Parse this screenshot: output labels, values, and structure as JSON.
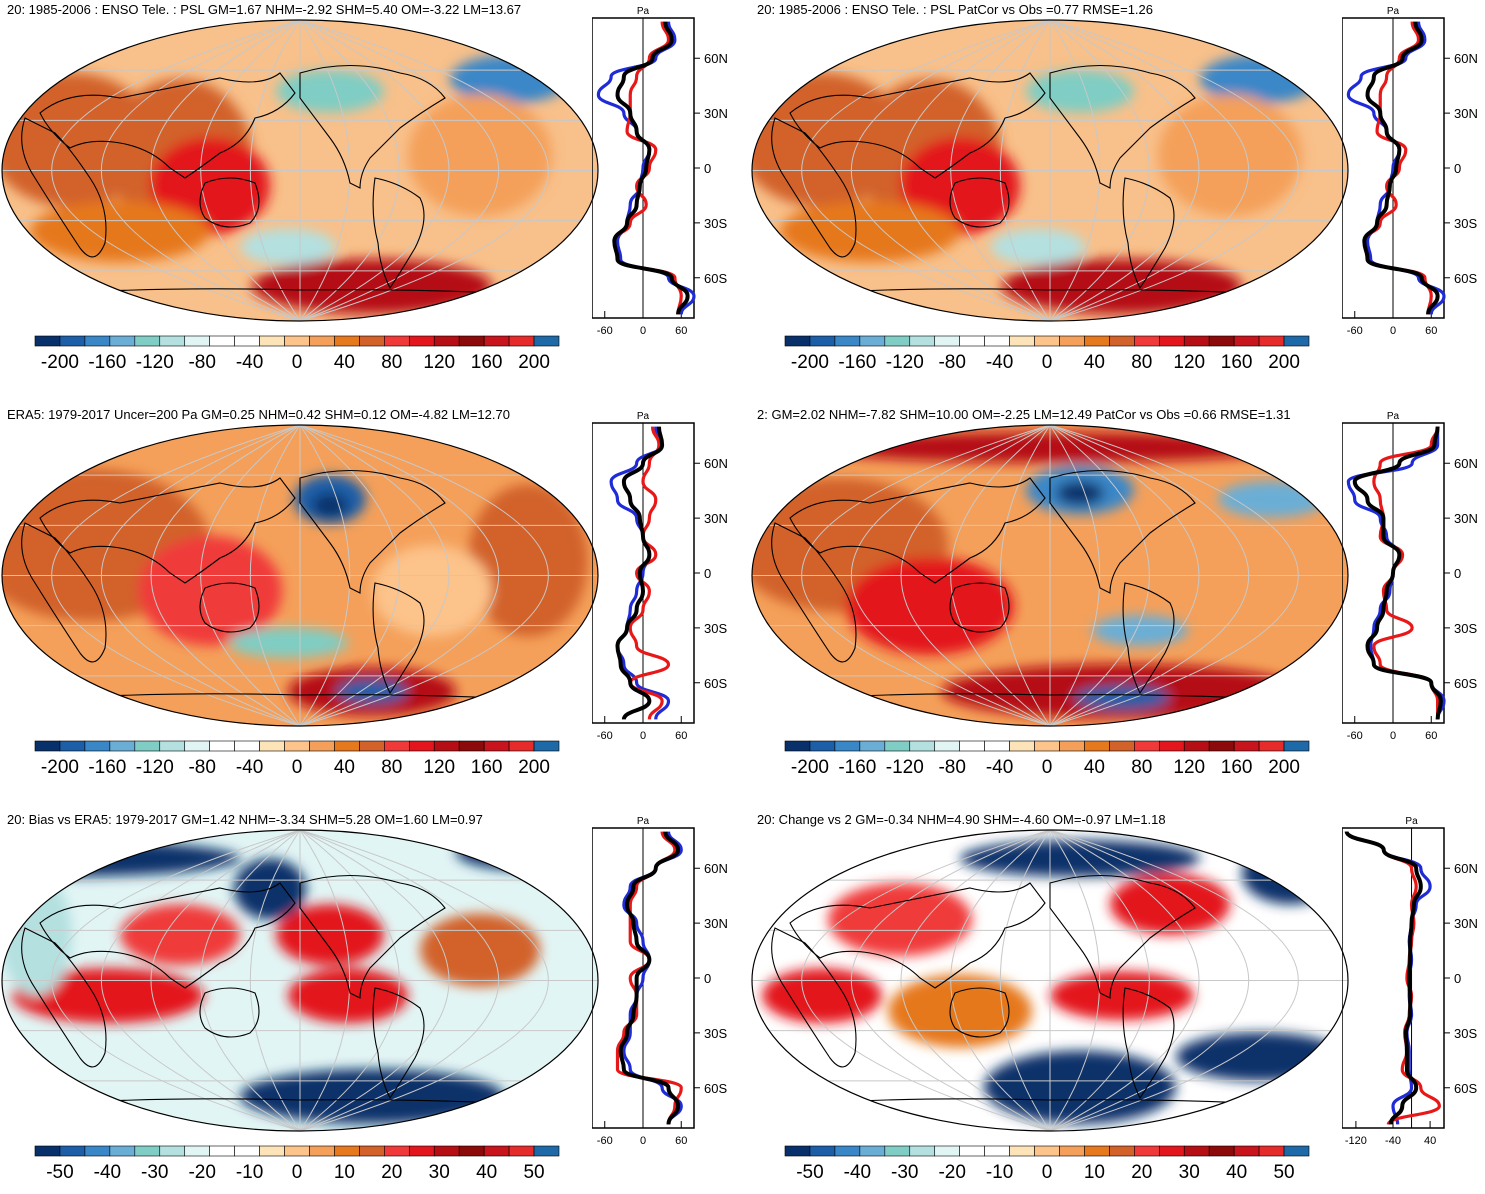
{
  "palette_diverging": [
    "#08306b",
    "#1c5ea8",
    "#3a87c8",
    "#6aaed6",
    "#7fcdc4",
    "#b4e0e0",
    "#e2f5f5",
    "#ffffff",
    "#ffffff",
    "#fde3b8",
    "#fcc38a",
    "#f4a05a",
    "#e6781e",
    "#d2622a",
    "#f03a3a",
    "#e3161d",
    "#b50e14",
    "#8c0a0a",
    "#c8141c",
    "#e62b2b",
    "#1e6aa8"
  ],
  "colors": {
    "blue_line": "#1f2bd6",
    "red_line": "#e81818",
    "black_line": "#000000",
    "land_outline": "#000000",
    "grid": "#c8c8c8"
  },
  "chart_data": [
    {
      "type": "heatmap",
      "title": "20: 1985-2006 : ENSO Tele. : PSL GM=1.67 NHM=-2.92 SHM=5.40 OM=-3.22 LM=13.67",
      "colorbar_ticks": [
        "-200",
        "-160",
        "-120",
        "-80",
        "-40",
        "0",
        "40",
        "80",
        "120",
        "160",
        "200"
      ],
      "zonal_profile": {
        "ylabel": "Pa",
        "lat_ticks": [
          "60N",
          "30N",
          "0",
          "30S",
          "60S"
        ],
        "x_ticks": [
          "-60",
          "0",
          "60"
        ],
        "xlim": [
          -80,
          80
        ],
        "series": [
          {
            "name": "blue",
            "lat": [
              80,
              70,
              60,
              50,
              40,
              30,
              20,
              10,
              0,
              -10,
              -20,
              -30,
              -40,
              -50,
              -60,
              -70,
              -80
            ],
            "values": [
              40,
              50,
              20,
              -50,
              -70,
              -30,
              -10,
              10,
              0,
              -5,
              -20,
              -25,
              -40,
              -35,
              40,
              80,
              60
            ]
          },
          {
            "name": "red",
            "lat": [
              80,
              70,
              60,
              50,
              40,
              30,
              20,
              10,
              0,
              -10,
              -20,
              -30,
              -40,
              -50,
              -60,
              -70,
              -80
            ],
            "values": [
              30,
              40,
              10,
              -10,
              -20,
              -20,
              -25,
              20,
              10,
              -10,
              5,
              -20,
              -45,
              -40,
              50,
              60,
              55
            ]
          },
          {
            "name": "black",
            "lat": [
              80,
              70,
              60,
              50,
              40,
              30,
              20,
              10,
              0,
              -10,
              -20,
              -30,
              -40,
              -50,
              -60,
              -70,
              -80
            ],
            "values": [
              35,
              45,
              15,
              -30,
              -40,
              -20,
              -10,
              10,
              5,
              -5,
              -10,
              -25,
              -45,
              -40,
              45,
              70,
              55
            ]
          }
        ]
      }
    },
    {
      "type": "heatmap",
      "title": "20: 1985-2006 : ENSO Tele. : PSL PatCor vs Obs =0.77 RMSE=1.26",
      "colorbar_ticks": [
        "-200",
        "-160",
        "-120",
        "-80",
        "-40",
        "0",
        "40",
        "80",
        "120",
        "160",
        "200"
      ],
      "zonal_profile": {
        "ylabel": "Pa",
        "lat_ticks": [
          "60N",
          "30N",
          "0",
          "30S",
          "60S"
        ],
        "x_ticks": [
          "-60",
          "0",
          "60"
        ],
        "xlim": [
          -80,
          80
        ],
        "series": [
          {
            "name": "blue",
            "lat": [
              80,
              70,
              60,
              50,
              40,
              30,
              20,
              10,
              0,
              -10,
              -20,
              -30,
              -40,
              -50,
              -60,
              -70,
              -80
            ],
            "values": [
              40,
              50,
              20,
              -50,
              -70,
              -30,
              -10,
              10,
              0,
              -5,
              -20,
              -25,
              -40,
              -35,
              40,
              80,
              60
            ]
          },
          {
            "name": "red",
            "lat": [
              80,
              70,
              60,
              50,
              40,
              30,
              20,
              10,
              0,
              -10,
              -20,
              -30,
              -40,
              -50,
              -60,
              -70,
              -80
            ],
            "values": [
              30,
              40,
              10,
              -10,
              -20,
              -20,
              -25,
              20,
              10,
              -10,
              5,
              -20,
              -45,
              -40,
              50,
              60,
              55
            ]
          },
          {
            "name": "black",
            "lat": [
              80,
              70,
              60,
              50,
              40,
              30,
              20,
              10,
              0,
              -10,
              -20,
              -30,
              -40,
              -50,
              -60,
              -70,
              -80
            ],
            "values": [
              35,
              45,
              15,
              -30,
              -40,
              -20,
              -10,
              10,
              5,
              -5,
              -10,
              -25,
              -45,
              -40,
              45,
              70,
              55
            ]
          }
        ]
      }
    },
    {
      "type": "heatmap",
      "title": "ERA5: 1979-2017 Uncer=200 Pa GM=0.25 NHM=0.42 SHM=0.12 OM=-4.82 LM=12.70",
      "colorbar_ticks": [
        "-200",
        "-160",
        "-120",
        "-80",
        "-40",
        "0",
        "40",
        "80",
        "120",
        "160",
        "200"
      ],
      "zonal_profile": {
        "ylabel": "Pa",
        "lat_ticks": [
          "60N",
          "30N",
          "0",
          "30S",
          "60S"
        ],
        "x_ticks": [
          "-60",
          "0",
          "60"
        ],
        "xlim": [
          -80,
          80
        ],
        "series": [
          {
            "name": "blue",
            "lat": [
              80,
              70,
              60,
              50,
              40,
              30,
              20,
              10,
              0,
              -10,
              -20,
              -30,
              -40,
              -50,
              -60,
              -70,
              -80
            ],
            "values": [
              20,
              30,
              -10,
              -50,
              -40,
              -10,
              0,
              10,
              0,
              -10,
              -20,
              -25,
              -40,
              -30,
              -10,
              40,
              20
            ]
          },
          {
            "name": "red",
            "lat": [
              80,
              70,
              60,
              50,
              40,
              30,
              20,
              10,
              0,
              -10,
              -20,
              -30,
              -40,
              -50,
              -60,
              -70,
              -80
            ],
            "values": [
              15,
              25,
              10,
              0,
              20,
              10,
              0,
              20,
              -10,
              10,
              0,
              -20,
              -10,
              40,
              -20,
              30,
              10
            ]
          },
          {
            "name": "black",
            "lat": [
              80,
              70,
              60,
              50,
              40,
              30,
              20,
              10,
              0,
              -10,
              -20,
              -30,
              -40,
              -50,
              -60,
              -70,
              -80
            ],
            "values": [
              25,
              30,
              0,
              -30,
              -20,
              -5,
              0,
              10,
              -5,
              0,
              -10,
              -25,
              -40,
              -35,
              -20,
              10,
              -30
            ]
          }
        ]
      }
    },
    {
      "type": "heatmap",
      "title": "2: GM=2.02 NHM=-7.82 SHM=10.00 OM=-2.25 LM=12.49 PatCor vs Obs =0.66 RMSE=1.31",
      "colorbar_ticks": [
        "-200",
        "-160",
        "-120",
        "-80",
        "-40",
        "0",
        "40",
        "80",
        "120",
        "160",
        "200"
      ],
      "zonal_profile": {
        "ylabel": "Pa",
        "lat_ticks": [
          "60N",
          "30N",
          "0",
          "30S",
          "60S"
        ],
        "x_ticks": [
          "-60",
          "0",
          "60"
        ],
        "xlim": [
          -80,
          80
        ],
        "series": [
          {
            "name": "blue",
            "lat": [
              80,
              70,
              60,
              50,
              40,
              30,
              20,
              10,
              0,
              -10,
              -20,
              -30,
              -40,
              -50,
              -60,
              -70,
              -80
            ],
            "values": [
              70,
              70,
              30,
              -70,
              -60,
              -20,
              -10,
              10,
              0,
              -5,
              -20,
              -30,
              -35,
              -30,
              60,
              80,
              70
            ]
          },
          {
            "name": "red",
            "lat": [
              80,
              70,
              60,
              50,
              40,
              30,
              20,
              10,
              0,
              -10,
              -20,
              -30,
              -40,
              -50,
              -60,
              -70,
              -80
            ],
            "values": [
              70,
              60,
              -20,
              -30,
              -20,
              -15,
              -20,
              15,
              0,
              -15,
              -10,
              30,
              -30,
              -20,
              60,
              70,
              70
            ]
          },
          {
            "name": "black",
            "lat": [
              80,
              70,
              60,
              50,
              40,
              30,
              20,
              10,
              0,
              -10,
              -20,
              -30,
              -40,
              -50,
              -60,
              -70,
              -80
            ],
            "values": [
              70,
              65,
              10,
              -60,
              -40,
              -15,
              -15,
              10,
              0,
              -10,
              -15,
              -25,
              -40,
              -30,
              60,
              75,
              70
            ]
          }
        ]
      }
    },
    {
      "type": "heatmap",
      "title": "20: Bias vs ERA5: 1979-2017 GM=1.42 NHM=-3.34 SHM=5.28 OM=1.60 LM=0.97",
      "colorbar_ticks": [
        "-50",
        "-40",
        "-30",
        "-20",
        "-10",
        "0",
        "10",
        "20",
        "30",
        "40",
        "50"
      ],
      "zonal_profile": {
        "ylabel": "Pa",
        "lat_ticks": [
          "60N",
          "30N",
          "0",
          "30S",
          "60S"
        ],
        "x_ticks": [
          "-60",
          "0",
          "60"
        ],
        "xlim": [
          -80,
          80
        ],
        "series": [
          {
            "name": "blue",
            "lat": [
              80,
              70,
              60,
              50,
              40,
              30,
              20,
              10,
              0,
              -10,
              -20,
              -30,
              -40,
              -50,
              -60,
              -70,
              -80
            ],
            "values": [
              40,
              60,
              20,
              -20,
              -30,
              -10,
              0,
              10,
              0,
              -10,
              -20,
              -20,
              -30,
              -20,
              30,
              60,
              40
            ]
          },
          {
            "name": "red",
            "lat": [
              80,
              70,
              60,
              50,
              40,
              30,
              20,
              10,
              0,
              -10,
              -20,
              -30,
              -40,
              -50,
              -60,
              -70,
              -80
            ],
            "values": [
              30,
              50,
              20,
              -10,
              -20,
              -20,
              -20,
              10,
              -20,
              -10,
              -10,
              -30,
              -40,
              -40,
              60,
              50,
              40
            ]
          },
          {
            "name": "black",
            "lat": [
              80,
              70,
              60,
              50,
              40,
              30,
              20,
              10,
              0,
              -10,
              -20,
              -30,
              -40,
              -50,
              -60,
              -70,
              -80
            ],
            "values": [
              35,
              55,
              20,
              -15,
              -25,
              -15,
              -10,
              10,
              -10,
              -10,
              -15,
              -25,
              -35,
              -30,
              40,
              55,
              40
            ]
          }
        ]
      }
    },
    {
      "type": "heatmap",
      "title": "20: Change vs 2 GM=-0.34 NHM=4.90 SHM=-4.60 OM=-0.97 LM=1.18",
      "colorbar_ticks": [
        "-50",
        "-40",
        "-30",
        "-20",
        "-10",
        "0",
        "10",
        "20",
        "30",
        "40",
        "50"
      ],
      "zonal_profile": {
        "ylabel": "Pa",
        "lat_ticks": [
          "60N",
          "30N",
          "0",
          "30S",
          "60S"
        ],
        "x_ticks": [
          "-120",
          "-40",
          "40"
        ],
        "xlim": [
          -150,
          70
        ],
        "series": [
          {
            "name": "blue",
            "lat": [
              80,
              70,
              60,
              50,
              40,
              30,
              20,
              10,
              0,
              -10,
              -20,
              -30,
              -40,
              -50,
              -60,
              -70,
              -80
            ],
            "values": [
              -140,
              -60,
              20,
              40,
              10,
              0,
              -5,
              0,
              -5,
              -5,
              0,
              -10,
              -5,
              -5,
              0,
              -40,
              -30
            ]
          },
          {
            "name": "red",
            "lat": [
              80,
              70,
              60,
              50,
              40,
              30,
              20,
              10,
              0,
              -10,
              -20,
              -30,
              -40,
              -50,
              -60,
              -70,
              -80
            ],
            "values": [
              -140,
              -60,
              0,
              10,
              0,
              5,
              0,
              -5,
              -10,
              0,
              -5,
              -15,
              -10,
              -20,
              20,
              60,
              -50
            ]
          },
          {
            "name": "black",
            "lat": [
              80,
              70,
              60,
              50,
              40,
              30,
              20,
              10,
              0,
              -10,
              -20,
              -30,
              -40,
              -50,
              -60,
              -70,
              -80
            ],
            "values": [
              -140,
              -60,
              10,
              20,
              5,
              0,
              -3,
              -3,
              -5,
              -3,
              -3,
              -12,
              -10,
              -10,
              10,
              -20,
              -45
            ]
          }
        ]
      }
    }
  ]
}
